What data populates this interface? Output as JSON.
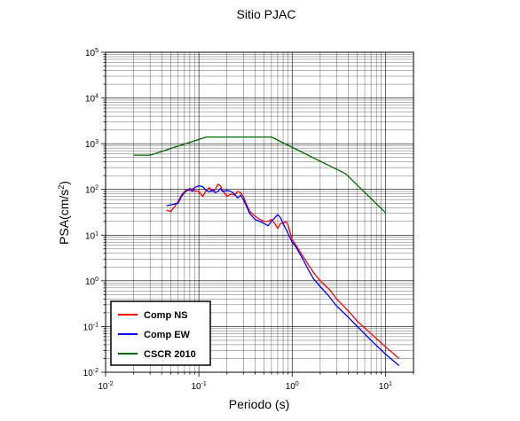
{
  "chart_data": {
    "type": "line",
    "title": "Sitio PJAC",
    "xlabel": "Periodo (s)",
    "ylabel_main": "PSA(cm/s",
    "ylabel_sup": "2",
    "ylabel_close": ")",
    "xscale": "log",
    "yscale": "log",
    "xlim": [
      0.01,
      20
    ],
    "ylim": [
      0.01,
      100000
    ],
    "grid": true,
    "legend_position": "bottom-left",
    "x_ticks": [
      {
        "base": "10",
        "exp": "-2",
        "value": 0.01
      },
      {
        "base": "10",
        "exp": "-1",
        "value": 0.1
      },
      {
        "base": "10",
        "exp": "0",
        "value": 1
      },
      {
        "base": "10",
        "exp": "1",
        "value": 10
      }
    ],
    "y_ticks": [
      {
        "base": "10",
        "exp": "-2",
        "value": 0.01
      },
      {
        "base": "10",
        "exp": "-1",
        "value": 0.1
      },
      {
        "base": "10",
        "exp": "0",
        "value": 1
      },
      {
        "base": "10",
        "exp": "1",
        "value": 10
      },
      {
        "base": "10",
        "exp": "2",
        "value": 100
      },
      {
        "base": "10",
        "exp": "3",
        "value": 1000
      },
      {
        "base": "10",
        "exp": "4",
        "value": 10000
      },
      {
        "base": "10",
        "exp": "5",
        "value": 100000
      }
    ],
    "series": [
      {
        "name": "Comp NS",
        "color": "#ff0000",
        "x": [
          0.045,
          0.05,
          0.055,
          0.06,
          0.065,
          0.07,
          0.075,
          0.08,
          0.085,
          0.09,
          0.1,
          0.11,
          0.12,
          0.13,
          0.14,
          0.15,
          0.16,
          0.17,
          0.18,
          0.2,
          0.22,
          0.24,
          0.26,
          0.28,
          0.3,
          0.32,
          0.35,
          0.4,
          0.45,
          0.5,
          0.55,
          0.6,
          0.65,
          0.7,
          0.75,
          0.8,
          0.85,
          0.9,
          1.0,
          1.1,
          1.2,
          1.3,
          1.5,
          1.7,
          2.0,
          2.5,
          3.0,
          4.0,
          5.0,
          7.0,
          10.0,
          14.0
        ],
        "y": [
          35,
          33,
          42,
          55,
          75,
          90,
          100,
          95,
          105,
          92,
          90,
          70,
          95,
          110,
          88,
          100,
          130,
          120,
          95,
          70,
          80,
          75,
          90,
          85,
          70,
          50,
          33,
          26,
          22,
          20,
          20,
          22,
          18,
          14,
          18,
          18,
          20,
          17,
          8,
          6,
          4.5,
          3.5,
          2.2,
          1.5,
          1.0,
          0.65,
          0.4,
          0.22,
          0.13,
          0.07,
          0.036,
          0.02
        ]
      },
      {
        "name": "Comp EW",
        "color": "#0000ff",
        "x": [
          0.045,
          0.05,
          0.055,
          0.06,
          0.065,
          0.07,
          0.075,
          0.08,
          0.085,
          0.09,
          0.1,
          0.11,
          0.12,
          0.13,
          0.14,
          0.15,
          0.16,
          0.17,
          0.18,
          0.2,
          0.22,
          0.24,
          0.26,
          0.28,
          0.3,
          0.32,
          0.35,
          0.4,
          0.45,
          0.5,
          0.55,
          0.6,
          0.65,
          0.7,
          0.75,
          0.8,
          0.85,
          0.9,
          1.0,
          1.1,
          1.2,
          1.3,
          1.5,
          1.7,
          2.0,
          2.5,
          3.0,
          4.0,
          5.0,
          7.0,
          10.0,
          14.0
        ],
        "y": [
          44,
          46,
          48,
          50,
          70,
          85,
          95,
          105,
          90,
          110,
          120,
          115,
          95,
          88,
          100,
          85,
          90,
          105,
          90,
          95,
          90,
          80,
          65,
          75,
          60,
          45,
          30,
          22,
          20,
          18,
          16,
          20,
          24,
          28,
          24,
          18,
          14,
          11,
          7,
          5.5,
          4,
          3,
          1.7,
          1.1,
          0.75,
          0.45,
          0.28,
          0.16,
          0.1,
          0.05,
          0.025,
          0.014
        ]
      },
      {
        "name": "CSCR 2010",
        "color": "#006400",
        "x": [
          0.02,
          0.03,
          0.12,
          0.6,
          3.75,
          10.0
        ],
        "y": [
          560,
          560,
          1400,
          1400,
          220,
          31
        ]
      }
    ]
  }
}
